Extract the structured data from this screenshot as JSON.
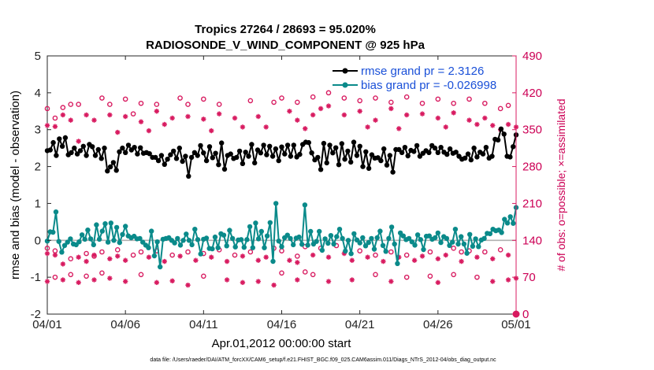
{
  "chart_data": {
    "type": "line",
    "title": "Tropics 27264 / 28693 = 95.020%",
    "subtitle": "RADIOSONDE_V_WIND_COMPONENT @ 925 hPa",
    "xlabel": "Apr.01,2012 00:00:00 start",
    "ylabel": "rmse and bias (model - observation)",
    "ylabel_right": "# of obs: o=possible; ×=assimilated",
    "footnote": "data file: /Users/raeder/DAI/ATM_forcXX/CAM6_setup/f.e21.FHIST_BGC.f09_025.CAM6assim.011/Diags_NTrS_2012-04/obs_diag_output.nc",
    "xlim": [
      0,
      30
    ],
    "ylim": [
      -2,
      5
    ],
    "ylim_right": [
      0,
      490
    ],
    "x_tick_labels": [
      "04/01",
      "04/06",
      "04/11",
      "04/16",
      "04/21",
      "04/26",
      "05/01"
    ],
    "y_tick_labels": [
      "-2",
      "-1",
      "0",
      "1",
      "2",
      "3",
      "4",
      "5"
    ],
    "y_right_tick_labels": [
      "0",
      "70",
      "140",
      "210",
      "280",
      "350",
      "420",
      "490"
    ],
    "grid": false,
    "legend_position": "top-right",
    "colors": {
      "rmse": "#000000",
      "bias": "#0a8a8a",
      "obs": "#d81b60",
      "zero_line": "#b0b0b0",
      "legend_text": "#1a50d8"
    },
    "series": [
      {
        "name": "rmse",
        "legend": "rmse grand pr = 2.3126",
        "axis": "left",
        "values": [
          2.43,
          2.45,
          2.65,
          2.3,
          2.75,
          2.55,
          2.78,
          2.32,
          2.38,
          2.5,
          2.34,
          2.43,
          2.55,
          2.3,
          2.6,
          2.54,
          2.3,
          2.46,
          2.22,
          2.5,
          1.88,
          1.99,
          2.11,
          1.9,
          2.4,
          2.5,
          2.38,
          2.58,
          2.45,
          2.52,
          2.34,
          2.51,
          2.36,
          2.38,
          2.35,
          2.25,
          2.25,
          2.16,
          2.3,
          2.06,
          2.2,
          2.32,
          2.42,
          2.22,
          2.5,
          2.14,
          2.28,
          1.74,
          2.25,
          2.38,
          2.3,
          2.57,
          2.37,
          2.16,
          2.54,
          2.24,
          2.36,
          2.05,
          2.64,
          1.93,
          2.3,
          2.34,
          2.22,
          2.25,
          2.42,
          2.08,
          2.39,
          2.28,
          2.6,
          2.1,
          2.45,
          2.37,
          2.58,
          2.32,
          2.55,
          2.28,
          2.48,
          2.16,
          2.53,
          2.34,
          2.58,
          2.28,
          2.58,
          2.26,
          2.33,
          2.6,
          2.66,
          2.65,
          2.37,
          2.18,
          2.25,
          1.92,
          2.63,
          2.1,
          2.58,
          2.37,
          2.51,
          2.05,
          2.62,
          2.2,
          2.42,
          2.12,
          2.66,
          2.3,
          2.55,
          2.0,
          2.4,
          1.95,
          2.32,
          2.23,
          2.24,
          2.16,
          2.48,
          2.04,
          2.3,
          1.85,
          2.46,
          2.46,
          2.38,
          2.52,
          2.29,
          2.44,
          2.41,
          2.57,
          2.28,
          2.36,
          2.43,
          2.38,
          2.57,
          2.5,
          2.38,
          2.52,
          2.39,
          2.33,
          2.48,
          2.36,
          2.39,
          2.28,
          2.2,
          2.23,
          2.34,
          2.18,
          2.5,
          2.26,
          2.39,
          2.34,
          2.52,
          2.23,
          2.28,
          2.74,
          2.72,
          3.02,
          2.88,
          2.28,
          2.26,
          2.54,
          2.86
        ]
      },
      {
        "name": "bias",
        "legend": "bias grand pr = -0.026998",
        "axis": "left",
        "values": [
          -0.02,
          0.23,
          0.22,
          0.77,
          -0.03,
          -0.32,
          -0.14,
          -0.05,
          0.04,
          -0.1,
          -0.12,
          -0.04,
          0.15,
          0.03,
          0.28,
          0.04,
          -0.12,
          0.42,
          0.03,
          0.25,
          0.45,
          -0.05,
          0.47,
          0.0,
          0.35,
          -0.06,
          0.16,
          0.38,
          0.12,
          0.07,
          0.11,
          0.04,
          0.05,
          -0.05,
          -0.13,
          -0.2,
          0.25,
          -0.42,
          -0.04,
          -0.72,
          0.03,
          0.05,
          0.07,
          0.0,
          -0.07,
          0.05,
          -0.13,
          0.0,
          0.17,
          0.0,
          -0.12,
          0.3,
          0.02,
          -0.37,
          0.03,
          0.06,
          -0.22,
          -0.23,
          0.09,
          -0.2,
          0.18,
          0.14,
          -0.15,
          0.27,
          0.05,
          -0.18,
          0.01,
          0.02,
          -0.19,
          0.02,
          0.37,
          -0.2,
          0.47,
          0.04,
          0.24,
          -0.2,
          0.12,
          0.48,
          -0.57,
          1.0,
          -0.02,
          -0.17,
          0.07,
          0.14,
          0.05,
          -0.12,
          0.06,
          0.09,
          -0.11,
          0.96,
          -0.13,
          0.24,
          -0.1,
          -0.03,
          0.24,
          -0.27,
          0.04,
          -0.08,
          0.13,
          -0.1,
          0.1,
          0.3,
          0.05,
          -0.29,
          0.0,
          -0.36,
          0.18,
          0.01,
          -0.07,
          0.07,
          -0.15,
          -0.06,
          0.05,
          -0.24,
          0.07,
          0.25,
          -0.14,
          -0.3,
          0.05,
          0.36,
          -0.1,
          -0.63,
          0.2,
          0.12,
          0.02,
          0.05,
          -0.04,
          -0.13,
          0.15,
          0.02,
          -0.25,
          0.11,
          0.12,
          0.03,
          0.07,
          0.2,
          -0.06,
          0.1,
          0.05,
          -0.14,
          -0.05,
          0.3,
          -0.1,
          0.1,
          -0.1,
          -0.35,
          0.16,
          -0.16,
          0.04,
          -0.17,
          0.01,
          0.05,
          0.19,
          0.18,
          0.3,
          0.26,
          0.28,
          0.21,
          0.57,
          0.47,
          0.64,
          0.46,
          0.89
        ]
      }
    ],
    "obs_possible_upper": [
      {
        "x": 0.0,
        "y": 390
      },
      {
        "x": 0.5,
        "y": 372
      },
      {
        "x": 1.0,
        "y": 392
      },
      {
        "x": 1.5,
        "y": 398
      },
      {
        "x": 2.0,
        "y": 398
      },
      {
        "x": 3.5,
        "y": 410
      },
      {
        "x": 4.0,
        "y": 398
      },
      {
        "x": 5.0,
        "y": 408
      },
      {
        "x": 5.5,
        "y": 380
      },
      {
        "x": 6.0,
        "y": 400
      },
      {
        "x": 7.0,
        "y": 398
      },
      {
        "x": 8.5,
        "y": 410
      },
      {
        "x": 9.0,
        "y": 398
      },
      {
        "x": 10.0,
        "y": 408
      },
      {
        "x": 11.0,
        "y": 398
      },
      {
        "x": 13.0,
        "y": 405
      },
      {
        "x": 14.5,
        "y": 402
      },
      {
        "x": 15.0,
        "y": 410
      },
      {
        "x": 16.0,
        "y": 402
      },
      {
        "x": 17.0,
        "y": 412
      },
      {
        "x": 18.0,
        "y": 420
      },
      {
        "x": 19.0,
        "y": 410
      },
      {
        "x": 20.0,
        "y": 405
      },
      {
        "x": 21.0,
        "y": 410
      },
      {
        "x": 22.0,
        "y": 402
      },
      {
        "x": 23.0,
        "y": 412
      },
      {
        "x": 24.0,
        "y": 400
      },
      {
        "x": 25.0,
        "y": 408
      },
      {
        "x": 26.0,
        "y": 400
      },
      {
        "x": 27.0,
        "y": 408
      },
      {
        "x": 28.0,
        "y": 400
      },
      {
        "x": 29.0,
        "y": 390
      },
      {
        "x": 29.5,
        "y": 396
      }
    ],
    "obs_assimilated_upper": [
      {
        "x": 0.0,
        "y": 358
      },
      {
        "x": 0.5,
        "y": 356
      },
      {
        "x": 1.0,
        "y": 378
      },
      {
        "x": 1.5,
        "y": 368
      },
      {
        "x": 2.0,
        "y": 328
      },
      {
        "x": 2.5,
        "y": 378
      },
      {
        "x": 3.0,
        "y": 368
      },
      {
        "x": 4.0,
        "y": 378
      },
      {
        "x": 4.5,
        "y": 345
      },
      {
        "x": 5.0,
        "y": 375
      },
      {
        "x": 6.0,
        "y": 365
      },
      {
        "x": 6.5,
        "y": 348
      },
      {
        "x": 7.0,
        "y": 385
      },
      {
        "x": 7.5,
        "y": 360
      },
      {
        "x": 8.0,
        "y": 372
      },
      {
        "x": 9.0,
        "y": 375
      },
      {
        "x": 10.0,
        "y": 370
      },
      {
        "x": 10.5,
        "y": 348
      },
      {
        "x": 11.0,
        "y": 380
      },
      {
        "x": 12.0,
        "y": 372
      },
      {
        "x": 12.5,
        "y": 355
      },
      {
        "x": 13.5,
        "y": 375
      },
      {
        "x": 14.0,
        "y": 355
      },
      {
        "x": 15.5,
        "y": 385
      },
      {
        "x": 16.0,
        "y": 368
      },
      {
        "x": 16.5,
        "y": 352
      },
      {
        "x": 17.0,
        "y": 378
      },
      {
        "x": 17.5,
        "y": 390
      },
      {
        "x": 18.0,
        "y": 395
      },
      {
        "x": 19.0,
        "y": 378
      },
      {
        "x": 20.0,
        "y": 385
      },
      {
        "x": 20.5,
        "y": 355
      },
      {
        "x": 21.0,
        "y": 368
      },
      {
        "x": 22.0,
        "y": 390
      },
      {
        "x": 22.5,
        "y": 352
      },
      {
        "x": 23.0,
        "y": 378
      },
      {
        "x": 24.0,
        "y": 380
      },
      {
        "x": 25.0,
        "y": 372
      },
      {
        "x": 25.5,
        "y": 355
      },
      {
        "x": 26.0,
        "y": 382
      },
      {
        "x": 27.0,
        "y": 368
      },
      {
        "x": 27.5,
        "y": 360
      },
      {
        "x": 28.0,
        "y": 372
      },
      {
        "x": 28.5,
        "y": 358
      },
      {
        "x": 29.0,
        "y": 350
      },
      {
        "x": 29.5,
        "y": 360
      },
      {
        "x": 30.0,
        "y": 355
      }
    ],
    "obs_possible_lower": [
      {
        "x": 0.0,
        "y": 125
      },
      {
        "x": 0.5,
        "y": 120
      },
      {
        "x": 1.5,
        "y": 105
      },
      {
        "x": 2.5,
        "y": 115
      },
      {
        "x": 3.0,
        "y": 110
      },
      {
        "x": 3.5,
        "y": 118
      },
      {
        "x": 4.5,
        "y": 122
      },
      {
        "x": 5.5,
        "y": 112
      },
      {
        "x": 6.0,
        "y": 118
      },
      {
        "x": 7.0,
        "y": 120
      },
      {
        "x": 8.0,
        "y": 112
      },
      {
        "x": 9.0,
        "y": 118
      },
      {
        "x": 10.0,
        "y": 115
      },
      {
        "x": 11.0,
        "y": 122
      },
      {
        "x": 12.0,
        "y": 112
      },
      {
        "x": 13.0,
        "y": 118
      },
      {
        "x": 14.5,
        "y": 125
      },
      {
        "x": 15.0,
        "y": 120
      },
      {
        "x": 16.0,
        "y": 110
      },
      {
        "x": 16.5,
        "y": 128
      },
      {
        "x": 17.5,
        "y": 125
      },
      {
        "x": 18.5,
        "y": 130
      },
      {
        "x": 20.0,
        "y": 120
      },
      {
        "x": 21.0,
        "y": 112
      },
      {
        "x": 22.0,
        "y": 118
      },
      {
        "x": 23.0,
        "y": 112
      },
      {
        "x": 24.5,
        "y": 118
      },
      {
        "x": 26.0,
        "y": 125
      },
      {
        "x": 26.5,
        "y": 118
      },
      {
        "x": 27.0,
        "y": 120
      },
      {
        "x": 28.0,
        "y": 118
      },
      {
        "x": 29.0,
        "y": 122
      },
      {
        "x": 0.5,
        "y": 70
      },
      {
        "x": 1.5,
        "y": 75
      },
      {
        "x": 2.5,
        "y": 72
      },
      {
        "x": 3.5,
        "y": 78
      },
      {
        "x": 6.0,
        "y": 75
      },
      {
        "x": 10.0,
        "y": 72
      },
      {
        "x": 15.0,
        "y": 78
      },
      {
        "x": 16.5,
        "y": 80
      },
      {
        "x": 17.0,
        "y": 75
      },
      {
        "x": 21.0,
        "y": 75
      },
      {
        "x": 23.0,
        "y": 70
      },
      {
        "x": 24.5,
        "y": 72
      },
      {
        "x": 26.0,
        "y": 75
      },
      {
        "x": 27.5,
        "y": 70
      }
    ],
    "obs_assimilated_lower": [
      {
        "x": 0.0,
        "y": 115
      },
      {
        "x": 0.5,
        "y": 112
      },
      {
        "x": 1.0,
        "y": 95
      },
      {
        "x": 2.0,
        "y": 108
      },
      {
        "x": 2.5,
        "y": 100
      },
      {
        "x": 3.0,
        "y": 112
      },
      {
        "x": 4.0,
        "y": 105
      },
      {
        "x": 4.5,
        "y": 110
      },
      {
        "x": 5.0,
        "y": 102
      },
      {
        "x": 6.5,
        "y": 108
      },
      {
        "x": 7.5,
        "y": 100
      },
      {
        "x": 8.5,
        "y": 110
      },
      {
        "x": 9.5,
        "y": 102
      },
      {
        "x": 10.5,
        "y": 108
      },
      {
        "x": 11.5,
        "y": 100
      },
      {
        "x": 12.5,
        "y": 110
      },
      {
        "x": 13.5,
        "y": 102
      },
      {
        "x": 14.0,
        "y": 108
      },
      {
        "x": 15.5,
        "y": 102
      },
      {
        "x": 16.0,
        "y": 98
      },
      {
        "x": 17.0,
        "y": 112
      },
      {
        "x": 18.0,
        "y": 108
      },
      {
        "x": 19.0,
        "y": 115
      },
      {
        "x": 19.5,
        "y": 102
      },
      {
        "x": 20.5,
        "y": 108
      },
      {
        "x": 21.5,
        "y": 100
      },
      {
        "x": 22.5,
        "y": 108
      },
      {
        "x": 23.5,
        "y": 102
      },
      {
        "x": 24.0,
        "y": 110
      },
      {
        "x": 25.0,
        "y": 105
      },
      {
        "x": 25.5,
        "y": 112
      },
      {
        "x": 26.5,
        "y": 100
      },
      {
        "x": 27.5,
        "y": 108
      },
      {
        "x": 28.5,
        "y": 105
      },
      {
        "x": 29.5,
        "y": 112
      },
      {
        "x": 0.0,
        "y": 62
      },
      {
        "x": 1.0,
        "y": 65
      },
      {
        "x": 2.0,
        "y": 60
      },
      {
        "x": 3.0,
        "y": 65
      },
      {
        "x": 4.0,
        "y": 68
      },
      {
        "x": 5.0,
        "y": 62
      },
      {
        "x": 7.0,
        "y": 60
      },
      {
        "x": 8.0,
        "y": 63
      },
      {
        "x": 9.0,
        "y": 55
      },
      {
        "x": 11.5,
        "y": 65
      },
      {
        "x": 12.5,
        "y": 60
      },
      {
        "x": 13.5,
        "y": 62
      },
      {
        "x": 14.5,
        "y": 55
      },
      {
        "x": 16.0,
        "y": 65
      },
      {
        "x": 18.0,
        "y": 62
      },
      {
        "x": 19.5,
        "y": 65
      },
      {
        "x": 22.0,
        "y": 62
      },
      {
        "x": 25.0,
        "y": 60
      },
      {
        "x": 28.5,
        "y": 62
      },
      {
        "x": 29.5,
        "y": 65
      },
      {
        "x": 30.0,
        "y": 68
      }
    ],
    "obs_zero_marker": [
      {
        "x": 30.0,
        "y": 0
      }
    ]
  }
}
